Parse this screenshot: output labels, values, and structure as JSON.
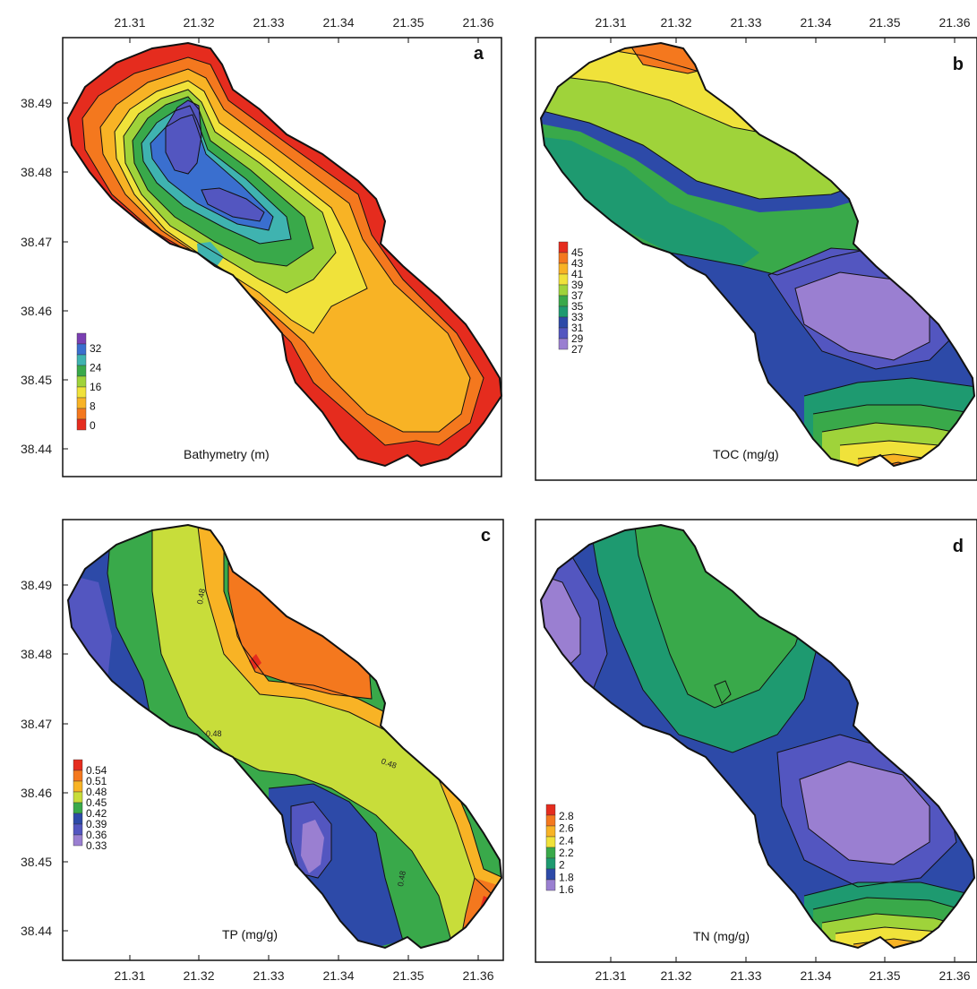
{
  "figure": {
    "panels": [
      {
        "id": "a",
        "letter": "a",
        "variable_label": "Bathymetry (m)",
        "legend_labels": [
          "32",
          "24",
          "16",
          "8",
          "0"
        ],
        "legend_colors": [
          "#7a3fb2",
          "#3a6fcf",
          "#3fb3b0",
          "#39a94a",
          "#9fd33a",
          "#f0e23a",
          "#f8b325",
          "#f4781e",
          "#e52c1e"
        ],
        "top_ticks": [
          "21.31",
          "21.32",
          "21.33",
          "21.34",
          "21.35",
          "21.36"
        ],
        "left_ticks": [
          "38.49",
          "38.48",
          "38.47",
          "38.46",
          "38.45",
          "38.44"
        ],
        "contour_labels": []
      },
      {
        "id": "b",
        "letter": "b",
        "variable_label": "TOC (mg/g)",
        "legend_labels": [
          "45",
          "43",
          "41",
          "39",
          "37",
          "35",
          "33",
          "31",
          "29",
          "27"
        ],
        "legend_colors": [
          "#e52c1e",
          "#f4781e",
          "#f8b325",
          "#f0e23a",
          "#9fd33a",
          "#39a94a",
          "#1e9a70",
          "#2d4aa8",
          "#5356c0",
          "#9a7fd1"
        ],
        "top_ticks": [
          "21.31",
          "21.32",
          "21.33",
          "21.34",
          "21.35",
          "21.36"
        ],
        "left_ticks": [],
        "contour_labels": []
      },
      {
        "id": "c",
        "letter": "c",
        "variable_label": "TP (mg/g)",
        "legend_labels": [
          "0.54",
          "0.51",
          "0.48",
          "0.45",
          "0.42",
          "0.39",
          "0.36",
          "0.33"
        ],
        "legend_colors": [
          "#e52c1e",
          "#f4781e",
          "#f8b325",
          "#c8dd3a",
          "#39a94a",
          "#2d4aa8",
          "#5356c0",
          "#9a7fd1"
        ],
        "top_ticks": [],
        "bottom_ticks": [
          "21.31",
          "21.32",
          "21.33",
          "21.34",
          "21.35",
          "21.36"
        ],
        "left_ticks": [
          "38.49",
          "38.48",
          "38.47",
          "38.46",
          "38.45",
          "38.44"
        ],
        "contour_labels": [
          "0.48",
          "0.48",
          "0.48",
          "0.48"
        ]
      },
      {
        "id": "d",
        "letter": "d",
        "variable_label": "TN (mg/g)",
        "legend_labels": [
          "2.8",
          "2.6",
          "2.4",
          "2.2",
          "2",
          "1.8",
          "1.6"
        ],
        "legend_colors": [
          "#e52c1e",
          "#f4781e",
          "#f8b325",
          "#f0e23a",
          "#39a94a",
          "#1e9a70",
          "#2d4aa8",
          "#9a7fd1"
        ],
        "top_ticks": [],
        "bottom_ticks": [
          "21.31",
          "21.32",
          "21.33",
          "21.34",
          "21.35",
          "21.36"
        ],
        "left_ticks": [],
        "contour_labels": []
      }
    ]
  }
}
